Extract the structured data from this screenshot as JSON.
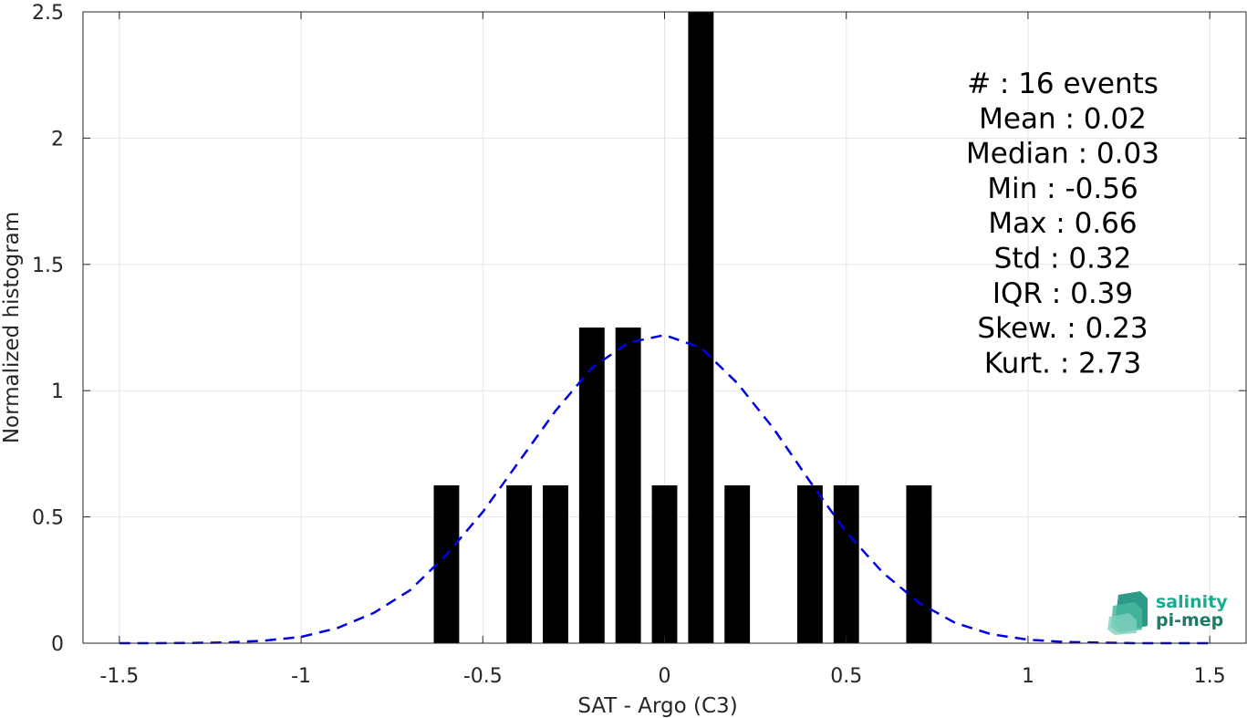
{
  "chart_data": {
    "type": "bar",
    "xlabel": "SAT - Argo (C3)",
    "ylabel": "Normalized histogram",
    "xlim": [
      -1.6,
      1.6
    ],
    "ylim": [
      0,
      2.5
    ],
    "grid": true,
    "x_ticks": [
      -1.5,
      -1,
      -0.5,
      0,
      0.5,
      1,
      1.5
    ],
    "x_tick_labels": [
      "-1.5",
      "-1",
      "-0.5",
      "0",
      "0.5",
      "1",
      "1.5"
    ],
    "y_ticks": [
      0,
      0.5,
      1,
      1.5,
      2,
      2.5
    ],
    "y_tick_labels": [
      "0",
      "0.5",
      "1",
      "1.5",
      "2",
      "2.5"
    ],
    "bar_width": 0.07,
    "bars": [
      {
        "x": -0.6,
        "value": 0.625
      },
      {
        "x": -0.4,
        "value": 0.625
      },
      {
        "x": -0.3,
        "value": 0.625
      },
      {
        "x": -0.2,
        "value": 1.25
      },
      {
        "x": -0.1,
        "value": 1.25
      },
      {
        "x": 0.0,
        "value": 0.625
      },
      {
        "x": 0.1,
        "value": 2.5
      },
      {
        "x": 0.2,
        "value": 0.625
      },
      {
        "x": 0.4,
        "value": 0.625
      },
      {
        "x": 0.5,
        "value": 0.625
      },
      {
        "x": 0.7,
        "value": 0.625
      }
    ],
    "fit_curve": {
      "style": "dashed",
      "color": "#0000e6",
      "x": [
        -1.5,
        -1.4,
        -1.3,
        -1.2,
        -1.1,
        -1.0,
        -0.9,
        -0.8,
        -0.7,
        -0.6,
        -0.5,
        -0.4,
        -0.3,
        -0.2,
        -0.1,
        0.0,
        0.1,
        0.2,
        0.3,
        0.4,
        0.5,
        0.6,
        0.7,
        0.8,
        0.9,
        1.0,
        1.1,
        1.2,
        1.3,
        1.4,
        1.5
      ],
      "y": [
        0.0,
        0.0,
        0.001,
        0.003,
        0.01,
        0.025,
        0.06,
        0.12,
        0.21,
        0.35,
        0.52,
        0.72,
        0.92,
        1.09,
        1.19,
        1.22,
        1.17,
        1.03,
        0.85,
        0.64,
        0.44,
        0.28,
        0.16,
        0.08,
        0.035,
        0.014,
        0.005,
        0.002,
        0.0,
        0.0,
        0.0
      ]
    },
    "stats": [
      "#  : 16 events",
      "Mean : 0.02",
      "Median : 0.03",
      "Min : -0.56",
      "Max : 0.66",
      "Std : 0.32",
      "IQR : 0.39",
      "Skew. : 0.23",
      "Kurt. : 2.73"
    ],
    "colors": {
      "bars": "#000000",
      "grid": "#e6e6e6",
      "axes": "#262626"
    }
  },
  "logo": {
    "line1": "salinity",
    "line2": "pi-mep",
    "color1": "#1aab8f",
    "color2": "#1f7a68"
  }
}
